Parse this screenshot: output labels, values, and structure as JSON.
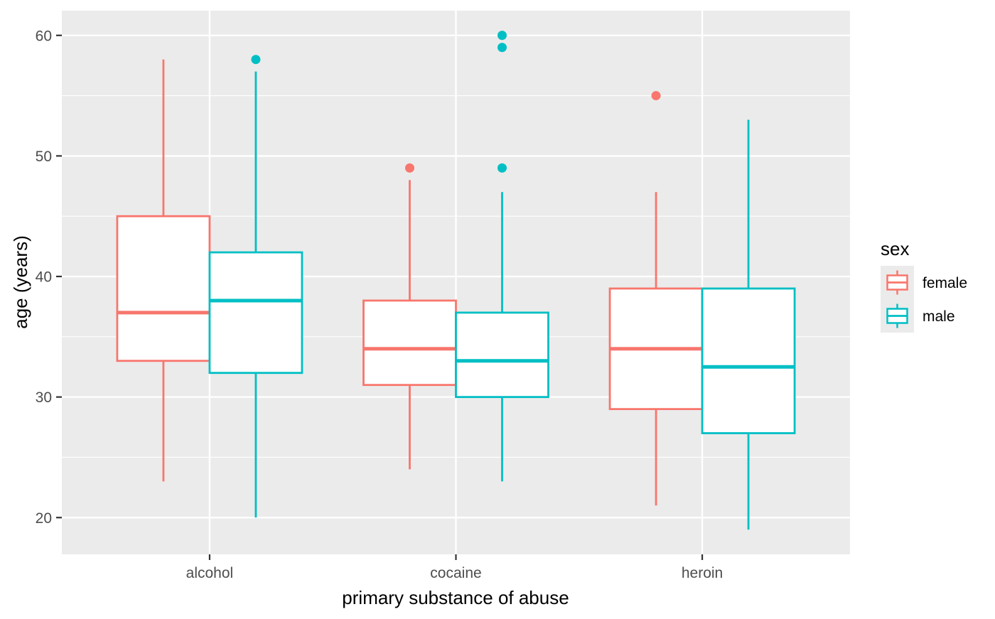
{
  "chart_data": {
    "type": "boxplot",
    "title": "",
    "xlabel": "primary substance of abuse",
    "ylabel": "age (years)",
    "categories": [
      "alcohol",
      "cocaine",
      "heroin"
    ],
    "y_ticks_major": [
      20,
      30,
      40,
      50,
      60
    ],
    "y_ticks_minor": [
      25,
      35,
      45,
      55
    ],
    "ylim": [
      16.95,
      62.05
    ],
    "grid": true,
    "legend": {
      "title": "sex",
      "position": "right"
    },
    "series": [
      {
        "name": "female",
        "color": "#F8766D",
        "boxes": [
          {
            "category": "alcohol",
            "whisker_low": 23,
            "q1": 33,
            "median": 37,
            "q3": 45,
            "whisker_high": 58,
            "outliers": []
          },
          {
            "category": "cocaine",
            "whisker_low": 24,
            "q1": 31,
            "median": 34,
            "q3": 38,
            "whisker_high": 48,
            "outliers": [
              49
            ]
          },
          {
            "category": "heroin",
            "whisker_low": 21,
            "q1": 29,
            "median": 34,
            "q3": 39,
            "whisker_high": 47,
            "outliers": [
              55
            ]
          }
        ]
      },
      {
        "name": "male",
        "color": "#00BFC4",
        "boxes": [
          {
            "category": "alcohol",
            "whisker_low": 20,
            "q1": 32,
            "median": 38,
            "q3": 42,
            "whisker_high": 57,
            "outliers": [
              58
            ]
          },
          {
            "category": "cocaine",
            "whisker_low": 23,
            "q1": 30,
            "median": 33,
            "q3": 37,
            "whisker_high": 47,
            "outliers": [
              49,
              59,
              60
            ]
          },
          {
            "category": "heroin",
            "whisker_low": 19,
            "q1": 27,
            "median": 32.5,
            "q3": 39,
            "whisker_high": 53,
            "outliers": []
          }
        ]
      }
    ],
    "style": {
      "panel_bg": "#EBEBEB",
      "grid_color": "#FFFFFF",
      "box_fill": "#FFFFFF",
      "tick_label_color": "#4D4D4D",
      "tick_mark_color": "#333333",
      "axis_title_color": "#000000",
      "legend_key_bg": "#EBEBEB"
    }
  }
}
